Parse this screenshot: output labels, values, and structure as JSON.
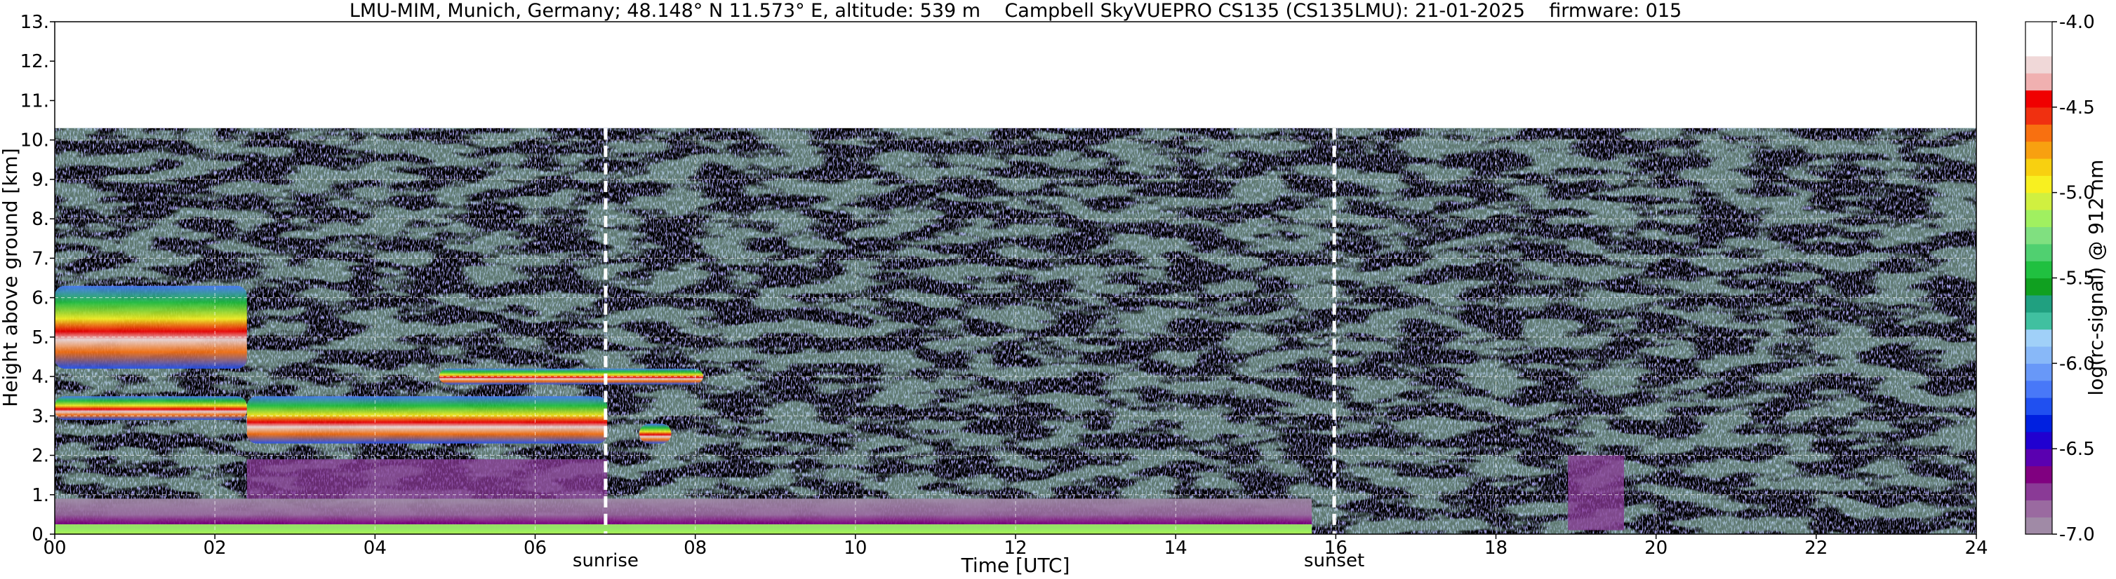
{
  "chart_data": {
    "type": "heatmap",
    "title": "LMU-MIM, Munich, Germany; 48.148° N 11.573° E, altitude: 539 m    Campbell SkyVUEPRO CS135 (CS135LMU): 21-01-2025    firmware: 015",
    "xlabel": "Time [UTC]",
    "ylabel": "Height above ground [km]",
    "xlim": [
      0,
      24
    ],
    "ylim": [
      0,
      13
    ],
    "x_ticks": [
      0,
      2,
      4,
      6,
      8,
      10,
      12,
      14,
      16,
      18,
      20,
      22,
      24
    ],
    "x_tick_labels": [
      "00",
      "02",
      "04",
      "06",
      "08",
      "10",
      "12",
      "14",
      "16",
      "18",
      "20",
      "22",
      "24"
    ],
    "y_ticks": [
      0,
      1,
      2,
      3,
      4,
      5,
      6,
      7,
      8,
      9,
      10,
      11,
      12,
      13
    ],
    "y_tick_labels": [
      "0.",
      "1.",
      "2.",
      "3.",
      "4.",
      "5.",
      "6.",
      "7.",
      "8.",
      "9.",
      "10.",
      "11.",
      "12.",
      "13."
    ],
    "grid": true,
    "data_top_km": 10.3,
    "colorbar": {
      "label": "log(rc-signal) @ 912 nm",
      "range": [
        -7.0,
        -4.0
      ],
      "ticks": [
        -7.0,
        -6.5,
        -6.0,
        -5.5,
        -5.0,
        -4.5,
        -4.0
      ],
      "tick_labels": [
        "-7.0",
        "-6.5",
        "-6.0",
        "-5.5",
        "-5.0",
        "-4.5",
        "-4.0"
      ],
      "colors": [
        "#a08aa6",
        "#9a6aa0",
        "#8a3a96",
        "#800080",
        "#5a00b0",
        "#2000d0",
        "#0020e0",
        "#2050f0",
        "#4878f8",
        "#6898f8",
        "#88b8f8",
        "#a0d0f8",
        "#40c0a0",
        "#20a080",
        "#10a020",
        "#20c040",
        "#50d070",
        "#80e080",
        "#a0f060",
        "#d0f040",
        "#f8f020",
        "#f8d010",
        "#f8a010",
        "#f87010",
        "#f03010",
        "#f00000",
        "#f0b0b0",
        "#f0d8d8",
        "#ffffff",
        "#ffffff"
      ]
    },
    "markers": [
      {
        "label": "sunrise",
        "x": 6.88
      },
      {
        "label": "sunset",
        "x": 15.98
      }
    ],
    "features": [
      {
        "name": "cloud",
        "t0": 0.0,
        "t1": 2.4,
        "h0": 4.2,
        "h1": 6.3,
        "level": -5.0
      },
      {
        "name": "cloud",
        "t0": 0.0,
        "t1": 2.4,
        "h0": 2.9,
        "h1": 3.5,
        "level": -5.2
      },
      {
        "name": "cloud",
        "t0": 2.4,
        "t1": 6.9,
        "h0": 2.3,
        "h1": 3.5,
        "level": -4.6
      },
      {
        "name": "cloud",
        "t0": 4.8,
        "t1": 8.1,
        "h0": 3.8,
        "h1": 4.2,
        "level": -4.2
      },
      {
        "name": "cloud",
        "t0": 7.3,
        "t1": 7.7,
        "h0": 2.3,
        "h1": 2.8,
        "level": -5.0
      },
      {
        "name": "boundary-layer",
        "t0": 0.0,
        "t1": 15.7,
        "h0": 0.0,
        "h1": 0.9,
        "level": -6.6
      },
      {
        "name": "surface",
        "t0": 0.0,
        "t1": 15.7,
        "h0": 0.0,
        "h1": 0.25,
        "level": -5.2
      },
      {
        "name": "aerosol",
        "t0": 2.4,
        "t1": 6.9,
        "h0": 0.9,
        "h1": 1.9,
        "level": -6.8
      },
      {
        "name": "aerosol",
        "t0": 18.9,
        "t1": 19.6,
        "h0": 0.1,
        "h1": 2.0,
        "level": -6.8
      }
    ]
  }
}
